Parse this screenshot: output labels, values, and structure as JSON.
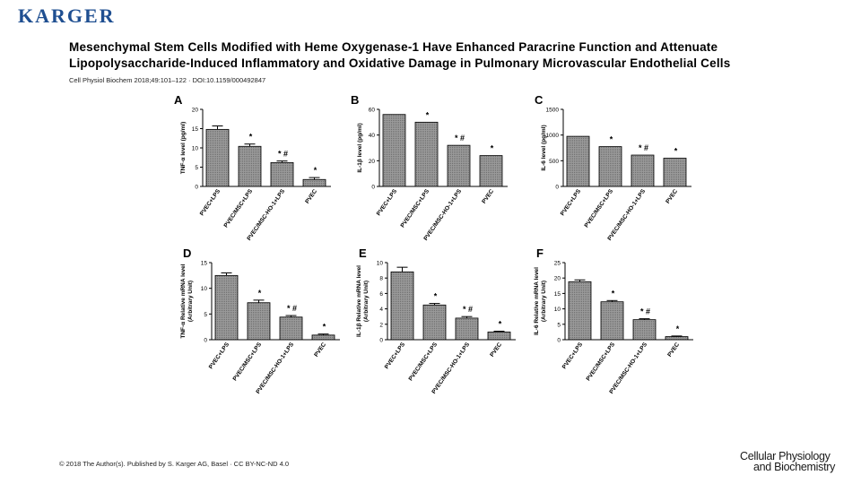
{
  "header": {
    "logo": "KARGER",
    "title_line1": "Mesenchymal Stem Cells Modified with Heme Oxygenase-1 Have Enhanced Paracrine Function and Attenuate",
    "title_line2": "Lipopolysaccharide-Induced Inflammatory and Oxidative Damage in Pulmonary Microvascular Endothelial Cells",
    "citation": "Cell Physiol Biochem 2018;49:101–122 · DOI:10.1159/000492847"
  },
  "footer": {
    "copyright": "© 2018 The Author(s). Published by S. Karger AG, Basel · CC BY-NC-ND 4.0",
    "brand_line1": "Cellular Physiology",
    "brand_line2": "and Biochemistry"
  },
  "colors": {
    "bar_fill": "#8a8a8a",
    "bar_stroke": "#000000",
    "logo": "#1f4f91"
  },
  "chart_data": [
    {
      "panel": "A",
      "type": "bar",
      "categories": [
        "PVEC+LPS",
        "PVEC/MSC+LPS",
        "PVEC/MSC-HO-1+LPS",
        "PVEC"
      ],
      "values": [
        14.8,
        10.4,
        6.2,
        1.8
      ],
      "errors": [
        0.9,
        0.6,
        0.4,
        0.5
      ],
      "annotations": [
        "",
        "*",
        "*#",
        "*"
      ],
      "ylabel": "TNF-α level (pg/ml)",
      "ylim": [
        0,
        20
      ],
      "yticks": [
        0,
        5,
        10,
        15,
        20
      ]
    },
    {
      "panel": "B",
      "type": "bar",
      "categories": [
        "PVEC+LPS",
        "PVEC/MSC+LPS",
        "PVEC/MSC-HO-1+LPS",
        "PVEC"
      ],
      "values": [
        56,
        50,
        32,
        24
      ],
      "errors": [
        0,
        0,
        0,
        0
      ],
      "annotations": [
        "",
        "*",
        "*#",
        "*"
      ],
      "ylabel": "IL-1β level (pg/ml)",
      "ylim": [
        0,
        60
      ],
      "yticks": [
        0,
        20,
        40,
        60
      ]
    },
    {
      "panel": "C",
      "type": "bar",
      "categories": [
        "PVEC+LPS",
        "PVEC/MSC+LPS",
        "PVEC/MSC-HO-1+LPS",
        "PVEC"
      ],
      "values": [
        975,
        775,
        610,
        550
      ],
      "errors": [
        0,
        0,
        0,
        0
      ],
      "annotations": [
        "",
        "*",
        "*#",
        "*"
      ],
      "ylabel": "IL-6 level (pg/ml)",
      "ylim": [
        0,
        1500
      ],
      "yticks": [
        0,
        500,
        1000,
        1500
      ]
    },
    {
      "panel": "D",
      "type": "bar",
      "categories": [
        "PVEC+LPS",
        "PVEC/MSC+LPS",
        "PVEC/MSC-HO-1+LPS",
        "PVEC"
      ],
      "values": [
        12.5,
        7.2,
        4.4,
        0.9
      ],
      "errors": [
        0.5,
        0.5,
        0.3,
        0.2
      ],
      "annotations": [
        "",
        "*",
        "*#",
        "*"
      ],
      "ylabel": [
        "TNF-α Relative mRNA level",
        "(Arbitrary Unit)"
      ],
      "ylim": [
        0,
        15
      ],
      "yticks": [
        0,
        5,
        10,
        15
      ]
    },
    {
      "panel": "E",
      "type": "bar",
      "categories": [
        "PVEC+LPS",
        "PVEC/MSC+LPS",
        "PVEC/MSC-HO-1+LPS",
        "PVEC"
      ],
      "values": [
        8.8,
        4.5,
        2.8,
        1.0
      ],
      "errors": [
        0.6,
        0.2,
        0.2,
        0.1
      ],
      "annotations": [
        "",
        "*",
        "*#",
        "*"
      ],
      "ylabel": [
        "IL-1β Relative mRNA level",
        "(Arbitrary Unit)"
      ],
      "ylim": [
        0,
        10
      ],
      "yticks": [
        0,
        2,
        4,
        6,
        8,
        10
      ]
    },
    {
      "panel": "F",
      "type": "bar",
      "categories": [
        "PVEC+LPS",
        "PVEC/MSC+LPS",
        "PVEC/MSC-HO-1+LPS",
        "PVEC"
      ],
      "values": [
        18.8,
        12.3,
        6.5,
        1.0
      ],
      "errors": [
        0.6,
        0.4,
        0.3,
        0.2
      ],
      "annotations": [
        "",
        "*",
        "*#",
        "*"
      ],
      "ylabel": [
        "IL-6 Relative mRNA level",
        "(Arbitrary Unit)"
      ],
      "ylim": [
        0,
        25
      ],
      "yticks": [
        0,
        5,
        10,
        15,
        20,
        25
      ]
    }
  ]
}
